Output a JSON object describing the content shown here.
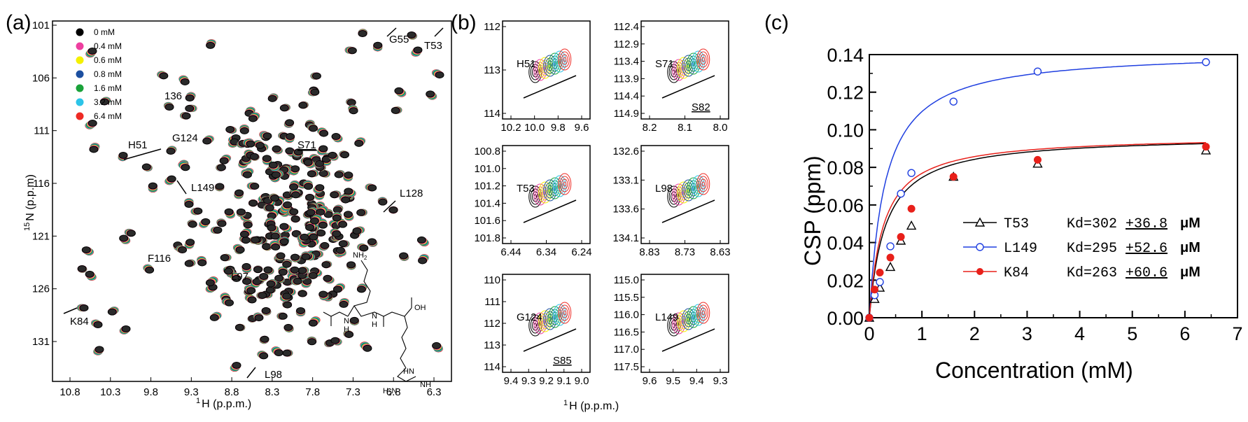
{
  "panel_labels": [
    "(a)",
    "(b)",
    "(c)"
  ],
  "panel_a": {
    "xlabel_sup": "1",
    "xlabel": "H (p.p.m.)",
    "ylabel_sup": "15",
    "ylabel": "N (p.p.m)",
    "xticks": [
      "10.8",
      "10.3",
      "9.8",
      "9.3",
      "8.8",
      "8.3",
      "7.8",
      "7.3",
      "6.8",
      "6.3"
    ],
    "yticks": [
      "101",
      "106",
      "111",
      "116",
      "121",
      "126",
      "131"
    ],
    "legend": [
      {
        "label": "0 mM",
        "color": "#000000"
      },
      {
        "label": "0.4 mM",
        "color": "#ee3fa0"
      },
      {
        "label": "0.6 mM",
        "color": "#f4f000"
      },
      {
        "label": "0.8 mM",
        "color": "#1c4fa0"
      },
      {
        "label": "1.6 mM",
        "color": "#1aa23a"
      },
      {
        "label": "3.2 mM",
        "color": "#2cc4e8"
      },
      {
        "label": "6.4 mM",
        "color": "#ee2a24"
      }
    ],
    "peak_labels": [
      "G55",
      "T53",
      "136",
      "H51",
      "G124",
      "S71",
      "L149",
      "L128",
      "F116",
      "L97",
      "K84",
      "L98"
    ],
    "chem_labels": {
      "amine": "NH",
      "amine_sub": "2",
      "nh1": "N",
      "nh1_h": "H",
      "nh2": "N",
      "nh2_h": "H",
      "oh": "OH",
      "hn": "HN",
      "h2n": "H",
      "h2n_sub": "2",
      "h2n_n": "N",
      "nh3": "NH"
    }
  },
  "panel_b": {
    "xlabel_sup": "1",
    "xlabel": "H (p.p.m.)",
    "subpanels": [
      {
        "label": "H51",
        "xticks": [
          "10.2",
          "10.0",
          "9.8",
          "9.6"
        ],
        "yticks": [
          "112",
          "113",
          "114"
        ]
      },
      {
        "label": "S71",
        "label2": "S82",
        "xticks": [
          "8.2",
          "8.1",
          "8.0"
        ],
        "yticks": [
          "112.4",
          "112.9",
          "113.4",
          "113.9",
          "114.4",
          "114.9"
        ]
      },
      {
        "label": "T53",
        "xticks": [
          "6.44",
          "6.34",
          "6.24"
        ],
        "yticks": [
          "100.8",
          "101.0",
          "101.2",
          "101.4",
          "101.6",
          "101.8"
        ]
      },
      {
        "label": "L98",
        "xticks": [
          "8.83",
          "8.73",
          "8.63"
        ],
        "yticks": [
          "132.6",
          "133.1",
          "133.6",
          "134.1"
        ]
      },
      {
        "label": "G124",
        "label2": "S85",
        "xticks": [
          "9.4",
          "9.3",
          "9.2",
          "9.1",
          "9.0"
        ],
        "yticks": [
          "110",
          "111",
          "112",
          "113",
          "114"
        ]
      },
      {
        "label": "L149",
        "xticks": [
          "9.6",
          "9.5",
          "9.4",
          "9.3"
        ],
        "yticks": [
          "115.0",
          "115.5",
          "116.0",
          "116.5",
          "117.0",
          "117.5"
        ]
      }
    ]
  },
  "chart_data": {
    "type": "scatter",
    "title": "",
    "xlabel": "Concentration (mM)",
    "ylabel": "CSP (ppm)",
    "xlim": [
      0,
      7
    ],
    "ylim": [
      0,
      0.14
    ],
    "xticks": [
      0,
      1,
      2,
      3,
      4,
      5,
      6,
      7
    ],
    "yticks": [
      0.0,
      0.02,
      0.04,
      0.06,
      0.08,
      0.1,
      0.12,
      0.14
    ],
    "xtick_labels": [
      "0",
      "1",
      "2",
      "3",
      "4",
      "5",
      "6",
      "7"
    ],
    "ytick_labels": [
      "0.00",
      "0.02",
      "0.04",
      "0.06",
      "0.08",
      "0.10",
      "0.12",
      "0.14"
    ],
    "legend_placement": "bottom-right",
    "series": [
      {
        "name": "T53",
        "kd_text": "Kd=302",
        "kd_err": "+36.8",
        "kd_unit": "μM",
        "color": "#000000",
        "marker": "triangle-open",
        "fit_max": 0.097,
        "x": [
          0,
          0.1,
          0.2,
          0.4,
          0.6,
          0.8,
          1.6,
          3.2,
          6.4
        ],
        "y": [
          0.0,
          0.01,
          0.016,
          0.027,
          0.041,
          0.049,
          0.075,
          0.082,
          0.089
        ]
      },
      {
        "name": "L149",
        "kd_text": "Kd=295",
        "kd_err": "+52.6",
        "kd_unit": "μM",
        "color": "#1f3fe0",
        "marker": "circle-open",
        "fit_max": 0.142,
        "x": [
          0,
          0.1,
          0.2,
          0.4,
          0.6,
          0.8,
          1.6,
          3.2,
          6.4
        ],
        "y": [
          0.0,
          0.012,
          0.019,
          0.038,
          0.066,
          0.077,
          0.115,
          0.131,
          0.136
        ]
      },
      {
        "name": "K84",
        "kd_text": "Kd=263",
        "kd_err": "+60.6",
        "kd_unit": "μM",
        "color": "#e8201a",
        "marker": "circle-filled",
        "fit_max": 0.097,
        "x": [
          0,
          0.1,
          0.2,
          0.4,
          0.6,
          0.8,
          1.6,
          3.2,
          6.4
        ],
        "y": [
          0.0,
          0.015,
          0.024,
          0.032,
          0.043,
          0.058,
          0.075,
          0.084,
          0.091
        ]
      }
    ]
  }
}
